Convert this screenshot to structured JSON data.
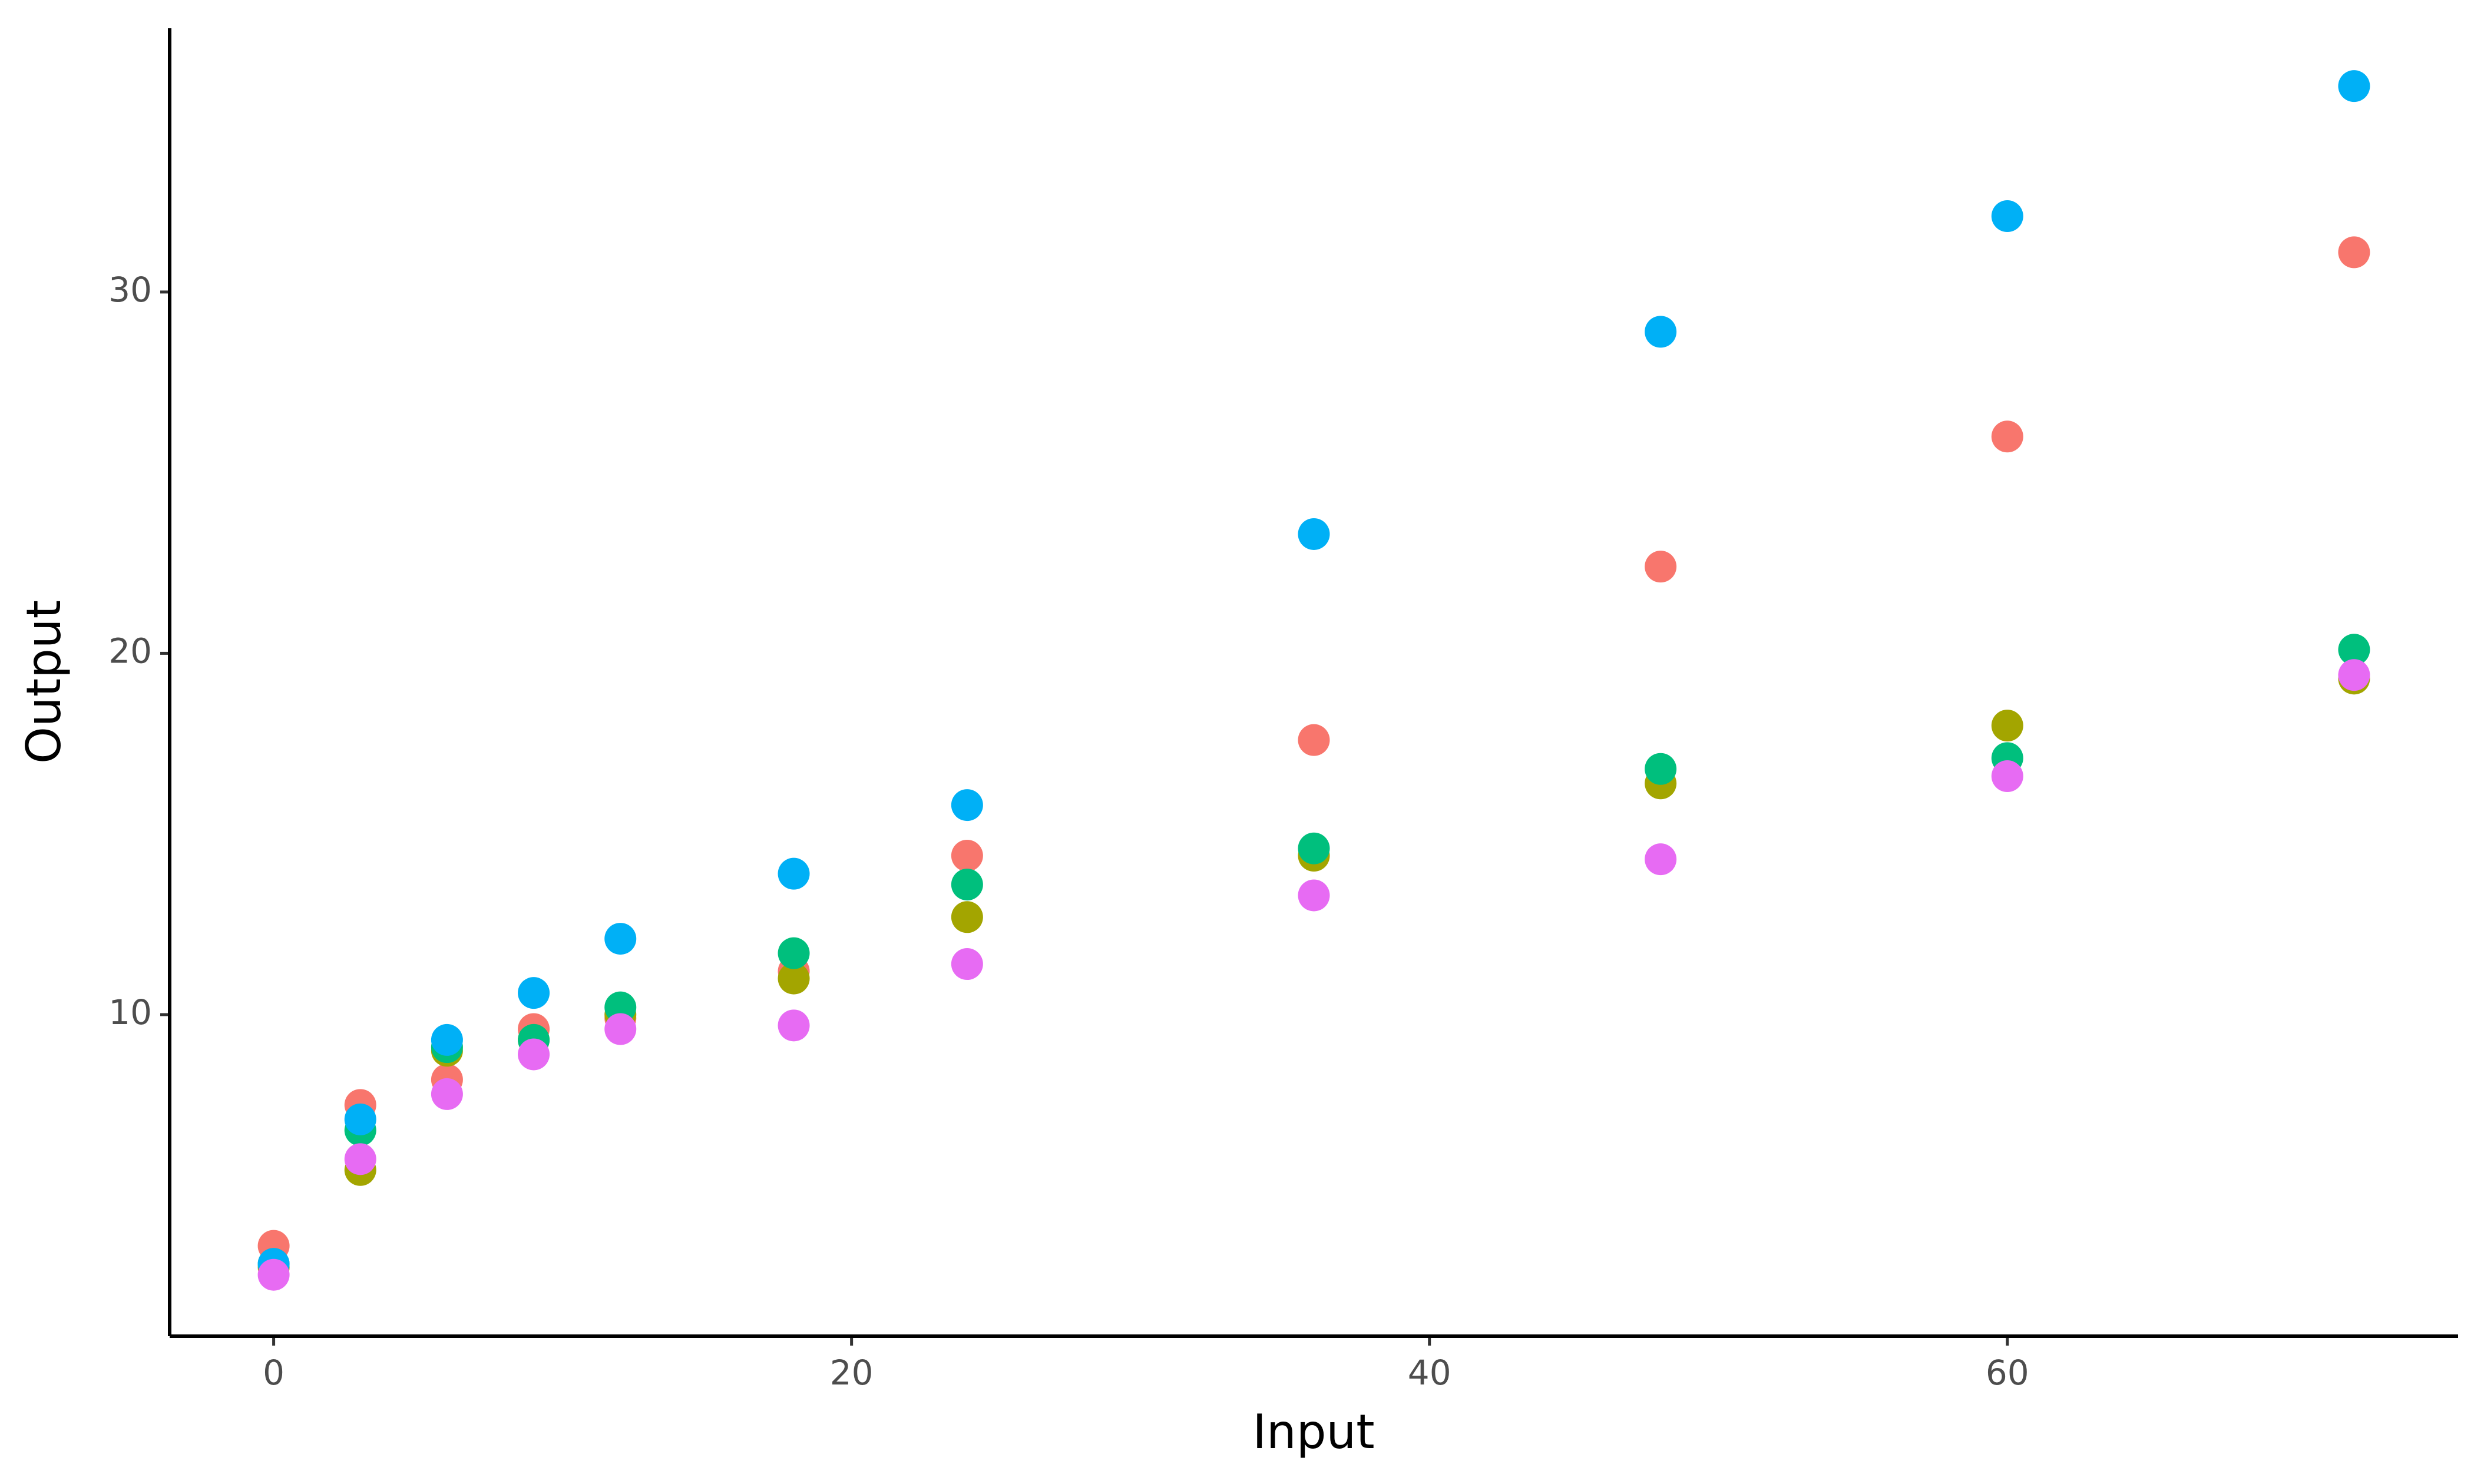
{
  "chart_data": {
    "type": "scatter",
    "x_label": "Input",
    "y_label": "Output",
    "x": [
      0,
      3,
      6,
      9,
      12,
      18,
      24,
      36,
      48,
      60,
      72
    ],
    "series": [
      {
        "color": "#F8766D",
        "values": [
          3.6,
          7.5,
          8.2,
          9.6,
          9.9,
          11.2,
          14.4,
          17.6,
          22.4,
          26.0,
          31.1
        ]
      },
      {
        "color": "#A3A500",
        "values": [
          3.0,
          5.7,
          9.0,
          9.3,
          10.0,
          11.0,
          12.7,
          14.4,
          16.4,
          18.0,
          19.3
        ]
      },
      {
        "color": "#00BF7D",
        "values": [
          3.1,
          6.8,
          9.1,
          9.3,
          10.2,
          11.7,
          13.6,
          14.6,
          16.8,
          17.1,
          20.1
        ]
      },
      {
        "color": "#00B0F6",
        "values": [
          3.1,
          7.1,
          9.3,
          10.6,
          12.1,
          13.9,
          15.8,
          23.3,
          28.9,
          32.1,
          35.7
        ]
      },
      {
        "color": "#E76BF3",
        "values": [
          2.8,
          6.0,
          7.8,
          8.9,
          9.6,
          9.7,
          11.4,
          13.3,
          14.3,
          16.6,
          19.4
        ]
      }
    ],
    "xlim": [
      -3.6,
      75.6
    ],
    "ylim": [
      1.1,
      37.3
    ],
    "xticks": [
      0,
      20,
      40,
      60
    ],
    "yticks": [
      10,
      20,
      30
    ]
  }
}
